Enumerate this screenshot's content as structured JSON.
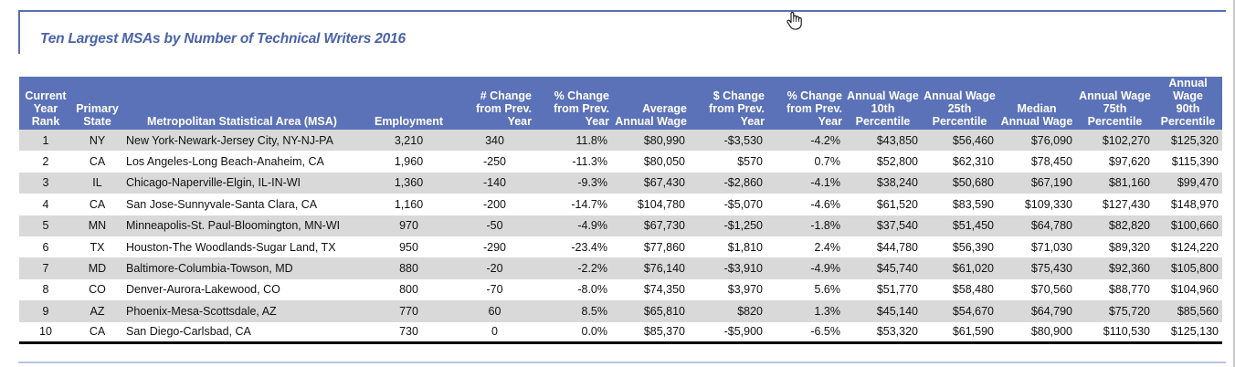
{
  "title": "Ten Largest MSAs by Number of Technical Writers 2016",
  "columns": [
    {
      "key": "rank",
      "label": "Current\nYear\nRank"
    },
    {
      "key": "state",
      "label": "Primary\nState"
    },
    {
      "key": "msa",
      "label": "Metropolitan Statistical Area (MSA)"
    },
    {
      "key": "employment",
      "label": "Employment"
    },
    {
      "key": "num_change",
      "label": "# Change\nfrom Prev.\nYear"
    },
    {
      "key": "pct_change",
      "label": "% Change\nfrom Prev.\nYear"
    },
    {
      "key": "avg_wage",
      "label": "Average\nAnnual Wage"
    },
    {
      "key": "usd_change",
      "label": "$ Change\nfrom Prev.\nYear"
    },
    {
      "key": "pct_change_wage",
      "label": "% Change\nfrom Prev.\nYear"
    },
    {
      "key": "p10",
      "label": "Annual Wage\n10th\nPercentile"
    },
    {
      "key": "p25",
      "label": "Annual Wage\n25th\nPercentile"
    },
    {
      "key": "median",
      "label": "Median\nAnnual Wage"
    },
    {
      "key": "p75",
      "label": "Annual Wage\n75th\nPercentile"
    },
    {
      "key": "p90",
      "label": "Annual Wage\n90th\nPercentile"
    }
  ],
  "rows": [
    [
      "1",
      "NY",
      "New York-Newark-Jersey City, NY-NJ-PA",
      "3,210",
      "340",
      "11.8%",
      "$80,990",
      "-$3,530",
      "-4.2%",
      "$43,850",
      "$56,460",
      "$76,090",
      "$102,270",
      "$125,320"
    ],
    [
      "2",
      "CA",
      "Los Angeles-Long Beach-Anaheim, CA",
      "1,960",
      "-250",
      "-11.3%",
      "$80,050",
      "$570",
      "0.7%",
      "$52,800",
      "$62,310",
      "$78,450",
      "$97,620",
      "$115,390"
    ],
    [
      "3",
      "IL",
      "Chicago-Naperville-Elgin, IL-IN-WI",
      "1,360",
      "-140",
      "-9.3%",
      "$67,430",
      "-$2,860",
      "-4.1%",
      "$38,240",
      "$50,680",
      "$67,190",
      "$81,160",
      "$99,470"
    ],
    [
      "4",
      "CA",
      "San Jose-Sunnyvale-Santa Clara, CA",
      "1,160",
      "-200",
      "-14.7%",
      "$104,780",
      "-$5,070",
      "-4.6%",
      "$61,520",
      "$83,590",
      "$109,330",
      "$127,430",
      "$148,970"
    ],
    [
      "5",
      "MN",
      "Minneapolis-St. Paul-Bloomington, MN-WI",
      "970",
      "-50",
      "-4.9%",
      "$67,730",
      "-$1,250",
      "-1.8%",
      "$37,540",
      "$51,450",
      "$64,780",
      "$82,820",
      "$100,660"
    ],
    [
      "6",
      "TX",
      "Houston-The Woodlands-Sugar Land, TX",
      "950",
      "-290",
      "-23.4%",
      "$77,860",
      "$1,810",
      "2.4%",
      "$44,780",
      "$56,390",
      "$71,030",
      "$89,320",
      "$124,220"
    ],
    [
      "7",
      "MD",
      "Baltimore-Columbia-Towson, MD",
      "880",
      "-20",
      "-2.2%",
      "$76,140",
      "-$3,910",
      "-4.9%",
      "$45,740",
      "$61,020",
      "$75,430",
      "$92,360",
      "$105,800"
    ],
    [
      "8",
      "CO",
      "Denver-Aurora-Lakewood, CO",
      "800",
      "-70",
      "-8.0%",
      "$74,350",
      "$3,970",
      "5.6%",
      "$51,770",
      "$58,480",
      "$70,560",
      "$88,770",
      "$104,960"
    ],
    [
      "9",
      "AZ",
      "Phoenix-Mesa-Scottsdale, AZ",
      "770",
      "60",
      "8.5%",
      "$65,810",
      "$820",
      "1.3%",
      "$45,140",
      "$54,670",
      "$64,790",
      "$75,720",
      "$85,560"
    ],
    [
      "10",
      "CA",
      "San Diego-Carlsbad, CA",
      "730",
      "0",
      "0.0%",
      "$85,370",
      "-$5,900",
      "-6.5%",
      "$53,320",
      "$61,590",
      "$80,900",
      "$110,530",
      "$125,130"
    ]
  ],
  "colors": {
    "header_bg": "#5b72b8",
    "title": "#4a63a8",
    "band": "#d9d9d9",
    "frame": "#5a6fae"
  },
  "icons": {
    "cursor": "hand-pointer-icon"
  }
}
